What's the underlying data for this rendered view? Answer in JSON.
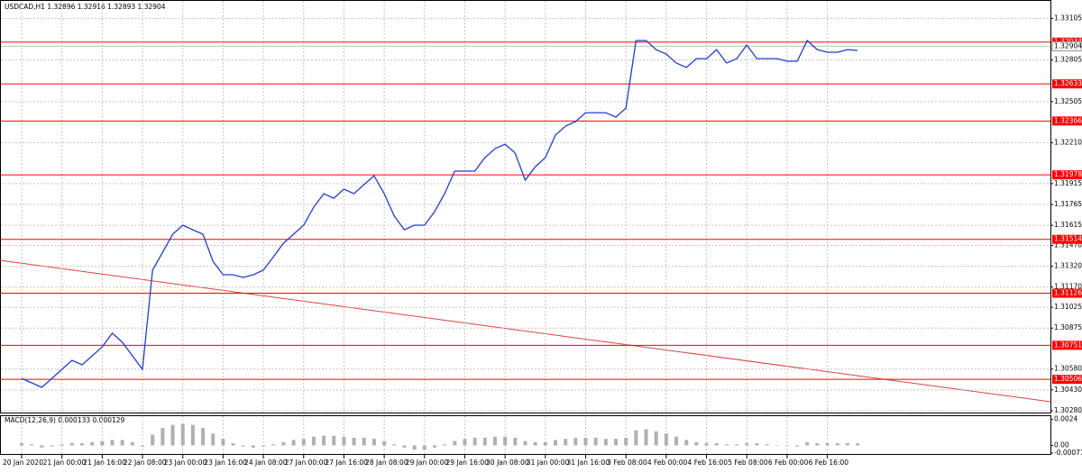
{
  "chart_data": [
    {
      "type": "line",
      "title": "USDCAD,H1  1.32896 1.32916 1.32893 1.32904",
      "categories": [
        "20 Jan 2020",
        null,
        null,
        null,
        "21 Jan 00:00",
        null,
        null,
        null,
        "21 Jan 16:00",
        null,
        null,
        null,
        "22 Jan 08:00",
        null,
        null,
        null,
        "23 Jan 00:00",
        null,
        null,
        null,
        "23 Jan 16:00",
        null,
        null,
        null,
        "24 Jan 08:00",
        null,
        null,
        null,
        "27 Jan 00:00",
        null,
        null,
        null,
        "27 Jan 16:00",
        null,
        null,
        null,
        "28 Jan 08:00",
        null,
        null,
        null,
        "29 Jan 00:00",
        null,
        null,
        null,
        "29 Jan 16:00",
        null,
        null,
        null,
        "30 Jan 08:00",
        null,
        null,
        null,
        "31 Jan 00:00",
        null,
        null,
        null,
        "31 Jan 16:00",
        null,
        null,
        null,
        "3 Feb 08:00",
        null,
        null,
        null,
        "4 Feb 00:00",
        null,
        null,
        null,
        "4 Feb 16:00",
        null,
        null,
        null,
        "5 Feb 08:00",
        null,
        null,
        null,
        "6 Feb 00:00",
        null,
        null,
        null,
        "6 Feb 16:00",
        null,
        null,
        null
      ],
      "values": [
        1.30513,
        1.30481,
        1.30448,
        1.30513,
        1.30578,
        1.30643,
        1.30611,
        1.30675,
        1.3074,
        1.30838,
        1.30773,
        1.30675,
        1.30578,
        1.31292,
        1.31421,
        1.31551,
        1.31616,
        1.31583,
        1.31551,
        1.31356,
        1.31259,
        1.31259,
        1.3124,
        1.31259,
        1.31292,
        1.31389,
        1.31486,
        1.31551,
        1.31616,
        1.31745,
        1.31843,
        1.3181,
        1.31875,
        1.31843,
        1.31908,
        1.31972,
        1.31843,
        1.31681,
        1.31583,
        1.31616,
        1.31616,
        1.31713,
        1.31843,
        1.32005,
        1.32005,
        1.32005,
        1.32102,
        1.32167,
        1.32199,
        1.32135,
        1.3194,
        1.32037,
        1.32102,
        1.32264,
        1.32329,
        1.32362,
        1.32426,
        1.32426,
        1.32426,
        1.32394,
        1.32459,
        1.32945,
        1.32945,
        1.3288,
        1.32848,
        1.32783,
        1.32751,
        1.32815,
        1.32815,
        1.3288,
        1.32783,
        1.32815,
        1.32913,
        1.32815,
        1.32815,
        1.32815,
        1.32796,
        1.32796,
        1.32945,
        1.3288,
        1.32861,
        1.32861,
        1.3288,
        1.32874
      ],
      "color": "#1f3fd0",
      "ylim": [
        1.30267,
        1.33237
      ],
      "yticks": [
        1.33105,
        1.32805,
        1.32505,
        {
          "value": 1.3221,
          "label": "1.32210"
        },
        1.31915,
        1.31765,
        1.31615,
        {
          "value": 1.3147,
          "label": "1.31470"
        },
        {
          "value": 1.3132,
          "label": "1.31320"
        },
        {
          "value": 1.3117,
          "label": "1.31170"
        },
        1.31025,
        1.30875,
        {
          "value": 1.3058,
          "label": "1.30580"
        },
        {
          "value": 1.3043,
          "label": "1.30430"
        },
        {
          "value": 1.3028,
          "label": "1.30280"
        }
      ],
      "levels": [
        1.32934,
        1.32633,
        1.32366,
        1.31978,
        1.31514,
        1.31126,
        1.30751,
        1.30506
      ],
      "level_color": "#ff0000",
      "current_price": 1.32904,
      "grid": true
    },
    {
      "type": "bar",
      "title": "MACD(12,26,9) 0.000133 0.000129",
      "values": [
        0.0002,
        0.0001,
        -0.0002,
        -0.0001,
        0.0001,
        0.0002,
        0.0002,
        0.0003,
        0.0004,
        0.0005,
        0.0005,
        0.0003,
        -0.0001,
        0.001,
        0.0016,
        0.0019,
        0.002,
        0.0019,
        0.0016,
        0.0011,
        0.0006,
        0.0002,
        -0.0001,
        -0.0002,
        -0.0001,
        0.0001,
        0.0003,
        0.0005,
        0.0006,
        0.0008,
        0.0009,
        0.0009,
        0.0008,
        0.0007,
        0.0007,
        0.0006,
        0.0004,
        0.0001,
        -0.0002,
        -0.0004,
        -0.0004,
        -0.0002,
        0.0001,
        0.0004,
        0.0006,
        0.0007,
        0.0007,
        0.0008,
        0.0008,
        0.0007,
        0.0004,
        0.0003,
        0.0003,
        0.0005,
        0.0006,
        0.0007,
        0.0007,
        0.0007,
        0.0006,
        0.0006,
        0.0007,
        0.0014,
        0.0015,
        0.0013,
        0.0011,
        0.0008,
        0.0005,
        0.0003,
        0.0002,
        0.0002,
        0.0001,
        0.0001,
        0.0002,
        0.0002,
        0.0001,
        0,
        0,
        -0.0001,
        0.0003,
        0.0002,
        0.0002,
        0.0002,
        0.0002,
        0.0002
      ],
      "color": "#b0b0b0",
      "ylim": [
        -0.000713,
        0.00279
      ],
      "yticks": [
        0.0024,
        {
          "value": 0,
          "label": "0.00"
        },
        -0.000713
      ]
    }
  ]
}
